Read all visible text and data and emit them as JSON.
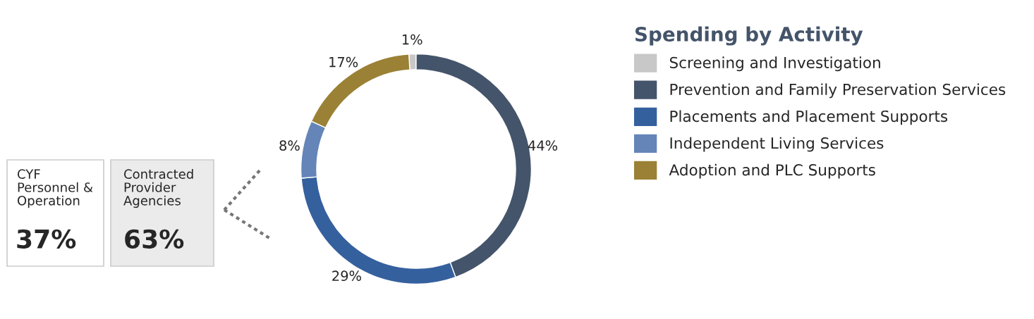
{
  "chart_data": {
    "type": "donut",
    "legend_title": "Spending by Activity",
    "legend": "right",
    "categories": [
      "Screening and Investigation",
      "Prevention and Family Preservation Services",
      "Placements and Placement Supports",
      "Independent Living Services",
      "Adoption and PLC Supports"
    ],
    "values": [
      1,
      44,
      29,
      8,
      17
    ],
    "value_labels": [
      "1%",
      "44%",
      "29%",
      "8%",
      "17%"
    ],
    "colors": [
      "#c8c8c8",
      "#44546a",
      "#35609e",
      "#6585b8",
      "#9b8135"
    ],
    "annotations": [
      "CYF\nPersonnel &\nOperation",
      "37%",
      "Contracted\nProvider\nAgencies",
      "63%"
    ]
  }
}
